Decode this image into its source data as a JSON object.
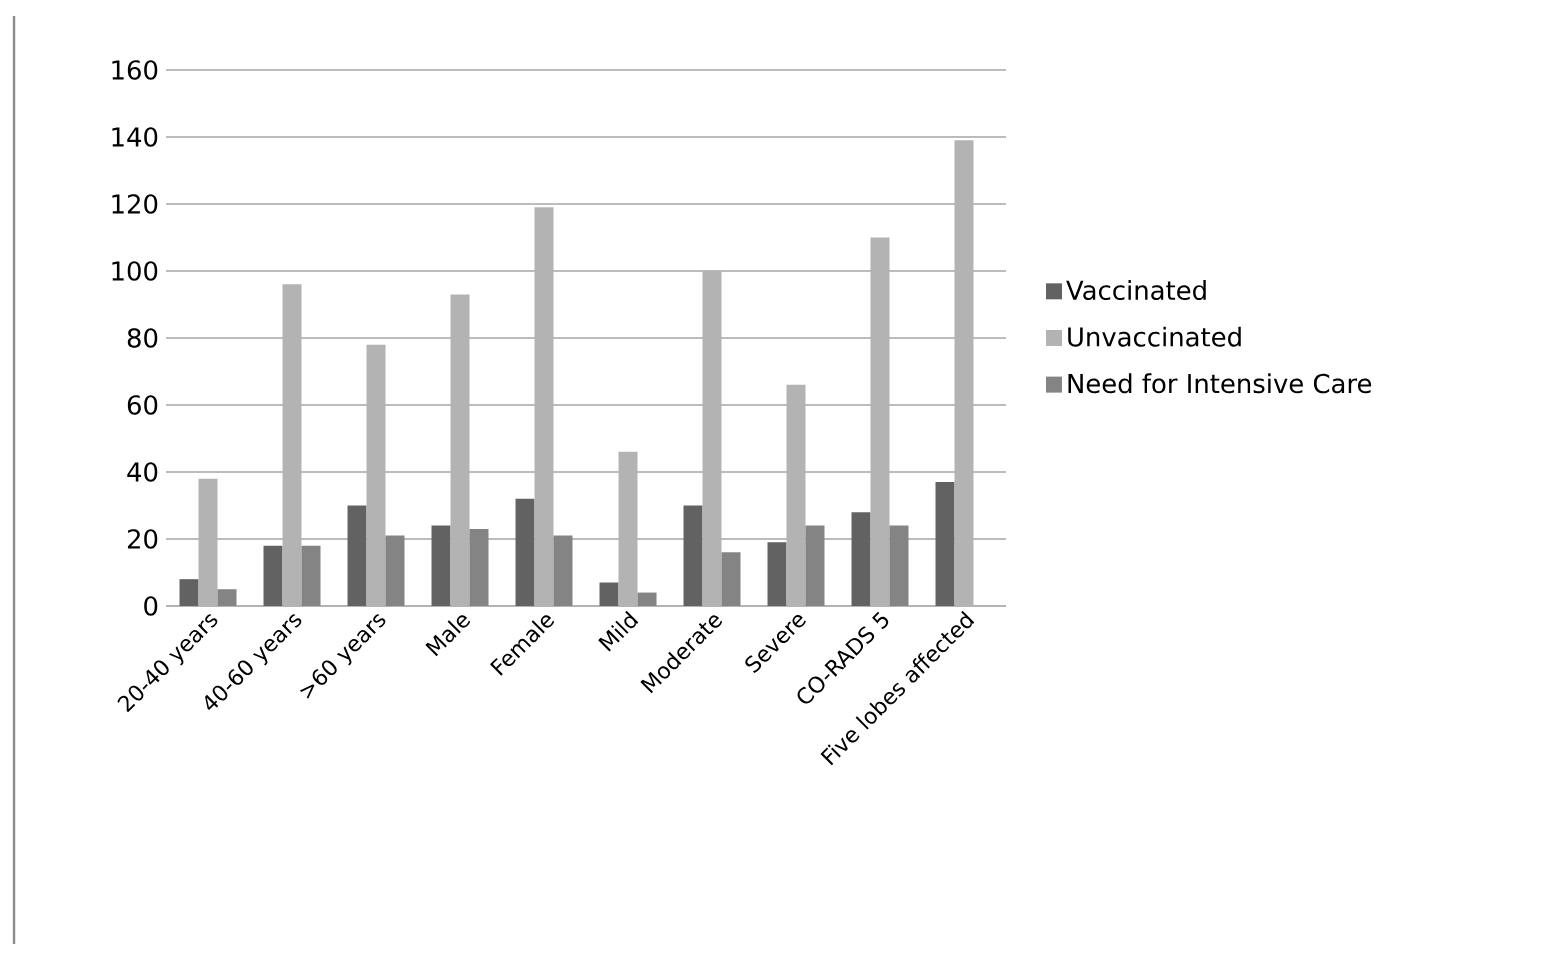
{
  "chart_data": {
    "type": "bar",
    "categories": [
      "20-40 years",
      "40-60 years",
      ">60 years",
      "Male",
      "Female",
      "Mild",
      "Moderate",
      "Severe",
      "CO-RADS 5",
      "Five lobes affected"
    ],
    "series": [
      {
        "name": "Vaccinated",
        "color": "#626262",
        "values": [
          8,
          18,
          30,
          24,
          32,
          7,
          30,
          19,
          28,
          37
        ]
      },
      {
        "name": "Unvaccinated",
        "color": "#b3b3b3",
        "values": [
          38,
          96,
          78,
          93,
          119,
          46,
          100,
          66,
          110,
          139
        ]
      },
      {
        "name": "Need for Intensive Care",
        "color": "#848484",
        "values": [
          5,
          18,
          21,
          23,
          21,
          4,
          16,
          24,
          24,
          null
        ]
      }
    ],
    "ylim": [
      0,
      160
    ],
    "yticks": [
      0,
      20,
      40,
      60,
      80,
      100,
      120,
      140,
      160
    ],
    "grid": "y",
    "legend": "right"
  }
}
